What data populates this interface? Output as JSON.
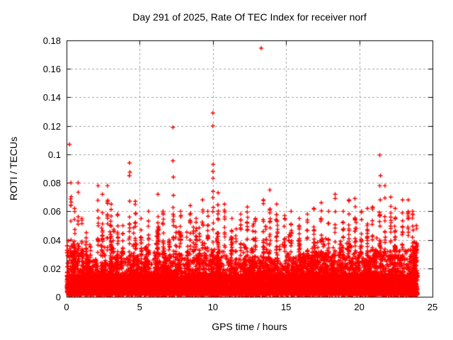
{
  "chart_data": {
    "type": "scatter",
    "title": "Day 291 of 2025, Rate Of TEC Index for receiver norf",
    "xlabel": "GPS time / hours",
    "ylabel": "ROTI / TECUs",
    "xlim": [
      0,
      25
    ],
    "ylim": [
      0,
      0.18
    ],
    "xticks": [
      0,
      5,
      10,
      15,
      20,
      25
    ],
    "xtick_labels": [
      "0",
      "5",
      "10",
      "15",
      "20",
      "25"
    ],
    "yticks": [
      0,
      0.02,
      0.04,
      0.06,
      0.08,
      0.1,
      0.12,
      0.14,
      0.16,
      0.18
    ],
    "ytick_labels": [
      "0",
      "0.02",
      "0.04",
      "0.06",
      "0.08",
      "0.1",
      "0.12",
      "0.14",
      "0.16",
      "0.18"
    ],
    "grid": true,
    "legend": "none",
    "marker": {
      "shape": "plus",
      "color": "#ff0000",
      "size": 7,
      "stroke": 1.4
    },
    "colors": {
      "frame": "#000000",
      "grid": "#a0a0a0",
      "background": "#ffffff",
      "text": "#000000"
    },
    "time_range_of_data": [
      0.02,
      23.98
    ],
    "notable_points": [
      [
        0.2,
        0.107
      ],
      [
        4.3,
        0.094
      ],
      [
        4.33,
        0.0875
      ],
      [
        7.27,
        0.119
      ],
      [
        7.27,
        0.0955
      ],
      [
        10.0,
        0.129
      ],
      [
        10.0,
        0.12
      ],
      [
        10.02,
        0.093
      ],
      [
        13.3,
        0.1745
      ],
      [
        21.4,
        0.0995
      ],
      [
        21.45,
        0.085
      ]
    ],
    "spike_clusters": [
      [
        0.3,
        0.08
      ],
      [
        0.55,
        0.062
      ],
      [
        0.8,
        0.08
      ],
      [
        1.05,
        0.055
      ],
      [
        1.35,
        0.045
      ],
      [
        2.15,
        0.078
      ],
      [
        2.45,
        0.072
      ],
      [
        2.8,
        0.078
      ],
      [
        3.05,
        0.065
      ],
      [
        3.5,
        0.058
      ],
      [
        3.85,
        0.05
      ],
      [
        4.3,
        0.085
      ],
      [
        4.7,
        0.067
      ],
      [
        5.1,
        0.055
      ],
      [
        5.6,
        0.06
      ],
      [
        6.25,
        0.072
      ],
      [
        6.6,
        0.06
      ],
      [
        7.3,
        0.084
      ],
      [
        7.8,
        0.06
      ],
      [
        8.45,
        0.064
      ],
      [
        8.85,
        0.055
      ],
      [
        9.3,
        0.068
      ],
      [
        9.65,
        0.06
      ],
      [
        10.0,
        0.088
      ],
      [
        10.35,
        0.073
      ],
      [
        10.8,
        0.065
      ],
      [
        11.3,
        0.055
      ],
      [
        11.9,
        0.058
      ],
      [
        12.35,
        0.063
      ],
      [
        12.9,
        0.055
      ],
      [
        13.45,
        0.068
      ],
      [
        13.9,
        0.075
      ],
      [
        14.35,
        0.065
      ],
      [
        14.9,
        0.057
      ],
      [
        15.35,
        0.06
      ],
      [
        15.9,
        0.055
      ],
      [
        16.45,
        0.058
      ],
      [
        16.9,
        0.062
      ],
      [
        17.4,
        0.066
      ],
      [
        17.9,
        0.06
      ],
      [
        18.35,
        0.072
      ],
      [
        18.9,
        0.06
      ],
      [
        19.3,
        0.068
      ],
      [
        19.7,
        0.069
      ],
      [
        20.15,
        0.06
      ],
      [
        20.55,
        0.062
      ],
      [
        20.9,
        0.063
      ],
      [
        21.4,
        0.078
      ],
      [
        21.75,
        0.078
      ],
      [
        22.15,
        0.07
      ],
      [
        22.45,
        0.062
      ],
      [
        22.95,
        0.068
      ],
      [
        23.35,
        0.068
      ],
      [
        23.65,
        0.06
      ],
      [
        23.9,
        0.05
      ]
    ],
    "generation": {
      "seed": 20251018,
      "base": {
        "n": 7000,
        "y0": 0.0015,
        "spread": 0.014,
        "pow": 1.6
      },
      "mid": {
        "n": 4200,
        "y0": 0.006,
        "pow": 2.4
      },
      "envelope_hourly_max": [
        0.036,
        0.027,
        0.024,
        0.028,
        0.029,
        0.027,
        0.031,
        0.03,
        0.028,
        0.03,
        0.033,
        0.027,
        0.026,
        0.028,
        0.027,
        0.028,
        0.03,
        0.032,
        0.029,
        0.031,
        0.028,
        0.032,
        0.033,
        0.033
      ],
      "columns": {
        "n": 170,
        "ymin": 0.015,
        "hmin": 0.028,
        "hvar": 0.026,
        "pts_min": 4,
        "pts_var": 9,
        "xjitter": 0.05
      },
      "cluster_pts": 11,
      "cluster_xjitter": 0.035,
      "cluster_ymin": 0.028
    }
  }
}
